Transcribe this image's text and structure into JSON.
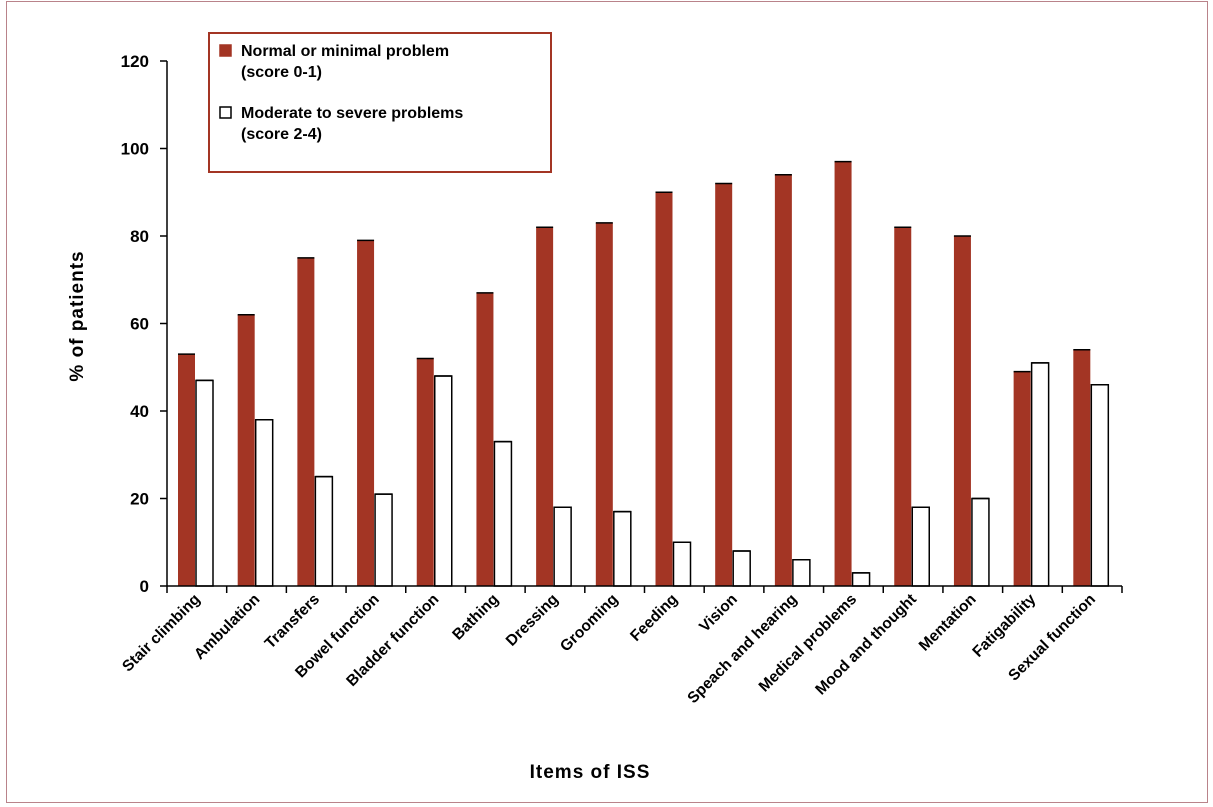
{
  "chart_data": {
    "type": "bar",
    "xlabel": "Items of ISS",
    "ylabel": "% of patients",
    "ylim": [
      0,
      120
    ],
    "yticks": [
      0,
      20,
      40,
      60,
      80,
      100,
      120
    ],
    "grid": false,
    "legend_position": "top-left",
    "categories": [
      "Stair climbing",
      "Ambulation",
      "Transfers",
      "Bowel function",
      "Bladder function",
      "Bathing",
      "Dressing",
      "Grooming",
      "Feeding",
      "Vision",
      "Speach and hearing",
      "Medical problems",
      "Mood and thought",
      "Mentation",
      "Fatigability",
      "Sexual function"
    ],
    "series": [
      {
        "name_lines": [
          "Normal or minimal problem",
          "(score 0-1)"
        ],
        "color": "#a33524",
        "values": [
          53,
          62,
          75,
          79,
          52,
          67,
          82,
          83,
          90,
          92,
          94,
          97,
          82,
          80,
          49,
          54
        ]
      },
      {
        "name_lines": [
          "Moderate to severe problems",
          "(score 2-4)"
        ],
        "color": "#ffffff",
        "values": [
          47,
          38,
          25,
          21,
          48,
          33,
          18,
          17,
          10,
          8,
          6,
          3,
          18,
          20,
          51,
          46
        ]
      }
    ]
  },
  "colors": {
    "frame": "#b9838a",
    "legend_border": "#a33524",
    "bar_outline": "#000000"
  }
}
